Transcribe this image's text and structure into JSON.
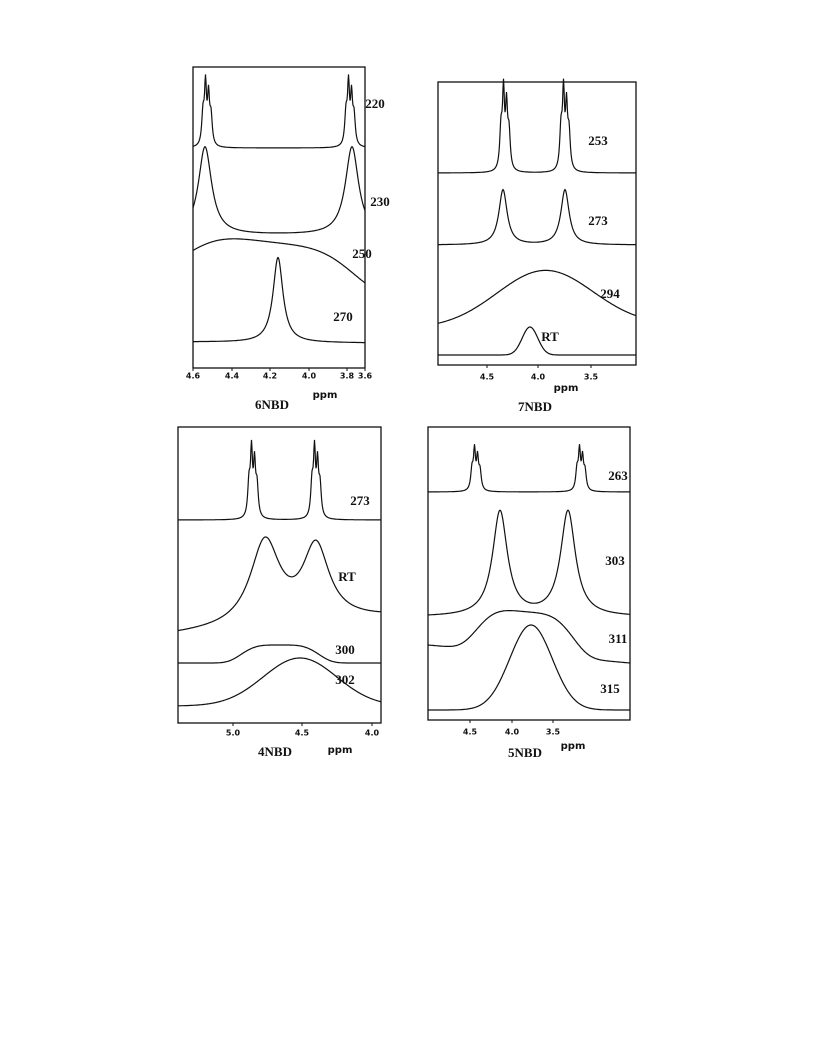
{
  "panels": [
    {
      "label": "6NBD",
      "axis_label": "ppm",
      "ticks": [
        "4.6",
        "4.4",
        "4.2",
        "4.0",
        "3.8",
        "3.6"
      ],
      "traces": [
        "220",
        "230",
        "250",
        "270"
      ]
    },
    {
      "label": "7NBD",
      "axis_label": "ppm",
      "ticks": [
        "4.5",
        "4.0",
        "3.5"
      ],
      "traces": [
        "253",
        "273",
        "294",
        "RT"
      ]
    },
    {
      "label": "4NBD",
      "axis_label": "ppm",
      "ticks": [
        "5.0",
        "4.5",
        "4.0"
      ],
      "traces": [
        "273",
        "RT",
        "300",
        "302"
      ]
    },
    {
      "label": "5NBD",
      "axis_label": "ppm",
      "ticks": [
        "4.5",
        "4.0",
        "3.5"
      ],
      "traces": [
        "263",
        "303",
        "311",
        "315"
      ]
    }
  ]
}
